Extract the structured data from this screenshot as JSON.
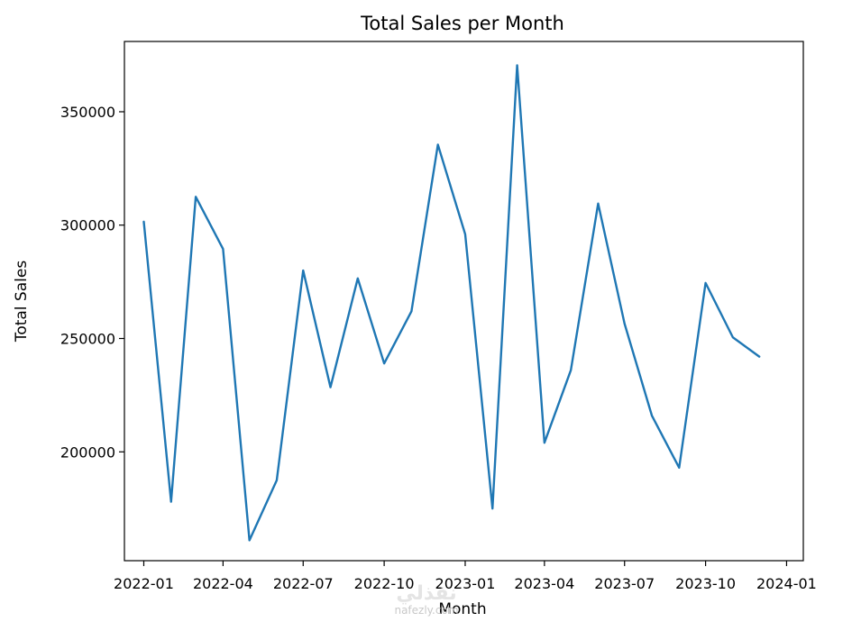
{
  "chart_data": {
    "type": "line",
    "title": "Total Sales per Month",
    "xlabel": "Month",
    "ylabel": "Total Sales",
    "x": [
      "2022-01",
      "2022-02",
      "2022-03",
      "2022-04",
      "2022-05",
      "2022-06",
      "2022-07",
      "2022-08",
      "2022-09",
      "2022-10",
      "2022-11",
      "2022-12",
      "2023-01",
      "2023-02",
      "2023-03",
      "2023-04",
      "2023-05",
      "2023-06",
      "2023-07",
      "2023-08",
      "2023-09",
      "2023-10",
      "2023-11",
      "2023-12"
    ],
    "series": [
      {
        "name": "",
        "color": "#1f77b4",
        "values": [
          301500,
          178000,
          312500,
          289500,
          161000,
          187500,
          280000,
          228500,
          276500,
          239000,
          262000,
          335500,
          296000,
          175000,
          370500,
          204000,
          236000,
          309500,
          256500,
          216000,
          193000,
          274500,
          250500,
          242000
        ]
      }
    ],
    "xticks": [
      "2022-01",
      "2022-04",
      "2022-07",
      "2022-10",
      "2023-01",
      "2023-04",
      "2023-07",
      "2023-10",
      "2024-01"
    ],
    "yticks": [
      200000,
      250000,
      300000,
      350000
    ],
    "ylim": [
      152000,
      381000
    ],
    "xlim": [
      "2021-12-10",
      "2024-01-20"
    ],
    "grid": false,
    "legend": "none"
  },
  "watermark": {
    "logo": "نفذلي",
    "url": "nafezly.com"
  }
}
